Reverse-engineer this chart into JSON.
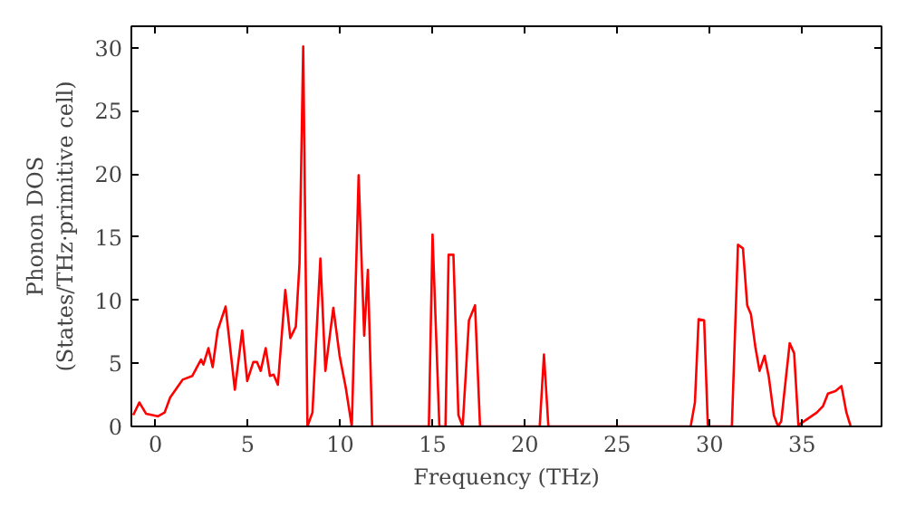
{
  "chart_data": {
    "type": "line",
    "xlabel": "Frequency (THz)",
    "ylabel": "Phonon DOS\n(States/THz·primitive cell)",
    "x": [
      -1.2,
      -0.87,
      -0.5,
      0.13,
      0.5,
      0.8,
      1.47,
      2.0,
      2.47,
      2.6,
      2.87,
      3.1,
      3.37,
      3.8,
      4.3,
      4.7,
      4.97,
      5.3,
      5.5,
      5.7,
      5.97,
      6.2,
      6.4,
      6.63,
      7.03,
      7.3,
      7.6,
      7.8,
      8.0,
      8.23,
      8.5,
      8.93,
      9.2,
      9.63,
      9.97,
      10.3,
      10.63,
      11.0,
      11.3,
      11.5,
      11.73,
      14.8,
      15.0,
      15.37,
      15.7,
      15.87,
      16.13,
      16.4,
      16.63,
      16.97,
      17.3,
      17.57,
      20.8,
      21.03,
      21.27,
      28.97,
      29.2,
      29.4,
      29.7,
      29.9,
      31.2,
      31.53,
      31.8,
      32.03,
      32.23,
      32.47,
      32.7,
      32.97,
      33.2,
      33.47,
      33.7,
      33.87,
      34.33,
      34.57,
      34.8,
      35.3,
      35.8,
      36.13,
      36.4,
      36.8,
      37.13,
      37.4,
      37.63
    ],
    "series": [
      {
        "color": "#ff0000",
        "values": [
          0.9,
          1.9,
          1.0,
          0.8,
          1.1,
          2.3,
          3.7,
          4.0,
          5.3,
          4.9,
          6.2,
          4.7,
          7.6,
          9.5,
          2.9,
          7.6,
          3.6,
          5.1,
          5.1,
          4.4,
          6.2,
          4.0,
          4.1,
          3.3,
          10.8,
          7.0,
          7.9,
          12.9,
          30.1,
          0,
          1.1,
          13.3,
          4.4,
          9.4,
          5.6,
          3.1,
          0,
          19.9,
          7.2,
          12.4,
          0,
          0,
          15.2,
          0,
          0,
          13.6,
          13.6,
          0.9,
          0,
          8.4,
          9.6,
          0,
          0,
          5.7,
          0,
          0,
          1.9,
          8.5,
          8.4,
          0,
          0,
          14.4,
          14.1,
          9.6,
          8.9,
          6.3,
          4.4,
          5.6,
          3.9,
          0.9,
          0,
          0.4,
          6.6,
          5.8,
          0.1,
          0.6,
          1.1,
          1.6,
          2.6,
          2.8,
          3.2,
          1.1,
          0
        ]
      }
    ],
    "xlim": [
      -1.3,
      39.3
    ],
    "ylim": [
      0,
      31.7
    ],
    "xticks": [
      0,
      5,
      10,
      15,
      20,
      25,
      30,
      35
    ],
    "yticks": [
      0,
      5,
      10,
      15,
      20,
      25,
      30
    ],
    "grid": false,
    "marker": "none",
    "line_style": "solid"
  }
}
